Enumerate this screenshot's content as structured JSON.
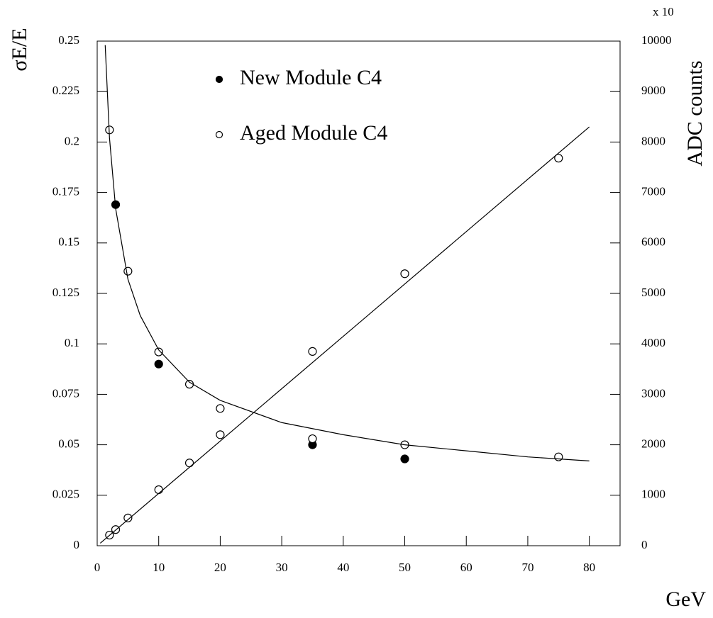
{
  "chart_data": {
    "type": "scatter",
    "xlabel": "GeV",
    "ylabel": "σE/E",
    "y2label": "ADC counts",
    "y2multiplier": "x 10",
    "xlim": [
      0,
      85
    ],
    "xticks": [
      0,
      10,
      20,
      30,
      40,
      50,
      60,
      70,
      80
    ],
    "ylim": [
      0,
      0.25
    ],
    "yticks": [
      0,
      0.025,
      0.05,
      0.075,
      0.1,
      0.125,
      0.15,
      0.175,
      0.2,
      0.225,
      0.25
    ],
    "y2lim": [
      0,
      10000
    ],
    "y2ticks": [
      0,
      1000,
      2000,
      3000,
      4000,
      5000,
      6000,
      7000,
      8000,
      9000,
      10000
    ],
    "color": "#000000",
    "series": [
      {
        "name": "New Module C4",
        "marker": "filled",
        "x": [
          3,
          10,
          35,
          50
        ],
        "values": [
          0.169,
          0.09,
          0.05,
          0.043
        ]
      },
      {
        "name": "Aged Module C4",
        "marker": "open",
        "x": [
          2,
          5,
          10,
          15,
          20,
          35,
          50,
          75
        ],
        "values": [
          0.206,
          0.136,
          0.096,
          0.08,
          0.068,
          0.053,
          0.05,
          0.044
        ]
      },
      {
        "marker": "open",
        "axis": "y2",
        "x": [
          2,
          3,
          5,
          10,
          15,
          20,
          35,
          50,
          75
        ],
        "values": [
          210,
          320,
          550,
          1110,
          1640,
          2200,
          3850,
          5390,
          7680
        ]
      },
      {
        "marker": "line",
        "x": [
          1.3,
          2,
          3,
          5,
          7,
          10,
          15,
          20,
          30,
          40,
          50,
          60,
          70,
          80
        ],
        "values": [
          0.248,
          0.202,
          0.167,
          0.132,
          0.114,
          0.097,
          0.081,
          0.072,
          0.061,
          0.055,
          0.05,
          0.047,
          0.044,
          0.042
        ]
      },
      {
        "marker": "line",
        "axis": "y2",
        "x": [
          0.5,
          80
        ],
        "values": [
          50,
          8300
        ]
      }
    ]
  }
}
